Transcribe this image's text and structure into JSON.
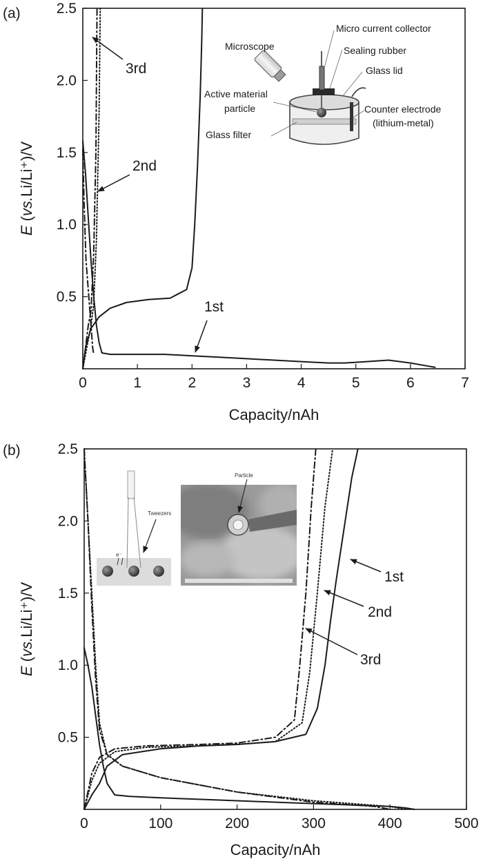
{
  "chart_data": [
    {
      "type": "line",
      "panel_label": "(a)",
      "xlabel": "Capacity/nAh",
      "ylabel": "E (vs.Li/Li⁺)/V",
      "xlim": [
        0,
        7
      ],
      "ylim": [
        0,
        2.5
      ],
      "x_ticks": [
        0,
        1,
        2,
        3,
        4,
        5,
        6,
        7
      ],
      "y_ticks": [
        0.5,
        1.0,
        1.5,
        2.0,
        2.5
      ],
      "grid": false,
      "series": [
        {
          "name": "1st",
          "style": "solid",
          "x": [
            0.0,
            0.05,
            0.1,
            0.15,
            0.2,
            0.25,
            0.3,
            0.35,
            0.5,
            1.0,
            1.5,
            2.0,
            2.5,
            3.0,
            3.5,
            4.0,
            4.5,
            4.8,
            5.2,
            5.6,
            6.0,
            6.3,
            6.45
          ],
          "y": [
            1.58,
            1.35,
            1.05,
            0.75,
            0.5,
            0.3,
            0.18,
            0.11,
            0.1,
            0.1,
            0.1,
            0.09,
            0.08,
            0.07,
            0.06,
            0.05,
            0.04,
            0.04,
            0.05,
            0.06,
            0.04,
            0.02,
            0.01
          ]
        },
        {
          "name": "1st",
          "style": "solid",
          "x": [
            0.0,
            0.05,
            0.15,
            0.3,
            0.5,
            0.8,
            1.2,
            1.6,
            1.9,
            2.0,
            2.05,
            2.1,
            2.15,
            2.18,
            2.19
          ],
          "y": [
            0.0,
            0.15,
            0.28,
            0.36,
            0.42,
            0.46,
            0.48,
            0.49,
            0.55,
            0.7,
            1.0,
            1.4,
            1.9,
            2.3,
            2.5
          ]
        },
        {
          "name": "2nd",
          "style": "dash-dot",
          "x": [
            0.0,
            0.02,
            0.04,
            0.06,
            0.08,
            0.1,
            0.12,
            0.14,
            0.16,
            0.18,
            0.2
          ],
          "y": [
            1.52,
            1.2,
            0.95,
            0.75,
            0.65,
            0.55,
            0.45,
            0.35,
            0.25,
            0.15,
            0.1
          ]
        },
        {
          "name": "2nd",
          "style": "dash-dot",
          "x": [
            0.0,
            0.05,
            0.1,
            0.15,
            0.2,
            0.24,
            0.26
          ],
          "y": [
            0.0,
            0.15,
            0.3,
            0.4,
            0.8,
            1.5,
            2.5
          ]
        },
        {
          "name": "3rd",
          "style": "dotted",
          "x": [
            0.0,
            0.05,
            0.1,
            0.15,
            0.2,
            0.25,
            0.3,
            0.32
          ],
          "y": [
            0.0,
            0.1,
            0.2,
            0.3,
            0.45,
            0.9,
            1.8,
            2.5
          ]
        }
      ],
      "annotations": [
        {
          "text": "3rd",
          "x": 0.75,
          "y": 2.05
        },
        {
          "text": "2nd",
          "x": 0.75,
          "y": 1.42
        },
        {
          "text": "1st",
          "x": 2.1,
          "y": 0.42
        }
      ],
      "inset": {
        "labels": {
          "microscope": "Microscope",
          "current_collector": "Micro current collector",
          "sealing": "Sealing rubber",
          "glass_lid": "Glass lid",
          "active1": "Active material",
          "active2": "particle",
          "counter1": "Counter electrode",
          "counter2": "(lithium-metal)",
          "glass_filter": "Glass filter"
        }
      }
    },
    {
      "type": "line",
      "panel_label": "(b)",
      "xlabel": "Capacity/nAh",
      "ylabel": "E (vs.Li/Li⁺)/V",
      "xlim": [
        0,
        500
      ],
      "ylim": [
        0,
        2.5
      ],
      "x_ticks": [
        0,
        100,
        200,
        300,
        400,
        500
      ],
      "y_ticks": [
        0.5,
        1.0,
        1.5,
        2.0,
        2.5
      ],
      "grid": false,
      "series": [
        {
          "name": "1st",
          "style": "solid",
          "x": [
            0,
            5,
            10,
            15,
            20,
            25,
            30,
            40,
            60,
            100,
            150,
            200,
            250,
            300,
            350,
            400,
            420,
            432
          ],
          "y": [
            1.12,
            1.0,
            0.85,
            0.65,
            0.45,
            0.3,
            0.18,
            0.1,
            0.09,
            0.08,
            0.07,
            0.06,
            0.05,
            0.04,
            0.03,
            0.02,
            0.01,
            0.0
          ]
        },
        {
          "name": "1st",
          "style": "solid",
          "x": [
            0,
            10,
            20,
            30,
            50,
            100,
            150,
            200,
            250,
            290,
            305,
            315,
            322,
            330,
            340,
            350,
            358
          ],
          "y": [
            0.0,
            0.1,
            0.18,
            0.3,
            0.38,
            0.42,
            0.44,
            0.45,
            0.47,
            0.52,
            0.7,
            1.0,
            1.3,
            1.6,
            1.95,
            2.3,
            2.5
          ]
        },
        {
          "name": "2nd",
          "style": "dotted",
          "x": [
            0,
            5,
            10,
            15,
            20,
            30,
            50,
            100,
            200,
            300,
            400,
            420
          ],
          "y": [
            2.5,
            2.0,
            1.5,
            1.0,
            0.6,
            0.38,
            0.3,
            0.22,
            0.12,
            0.06,
            0.02,
            0.0
          ]
        },
        {
          "name": "2nd",
          "style": "dotted",
          "x": [
            0,
            10,
            20,
            40,
            80,
            150,
            200,
            250,
            285,
            295,
            305,
            315,
            325
          ],
          "y": [
            0.0,
            0.2,
            0.32,
            0.4,
            0.43,
            0.44,
            0.45,
            0.47,
            0.6,
            0.95,
            1.5,
            2.1,
            2.5
          ]
        },
        {
          "name": "3rd",
          "style": "dash-dot",
          "x": [
            0,
            5,
            10,
            15,
            20,
            30,
            50,
            100,
            200,
            300,
            380,
            400
          ],
          "y": [
            2.5,
            2.0,
            1.4,
            0.9,
            0.55,
            0.38,
            0.3,
            0.22,
            0.12,
            0.05,
            0.02,
            0.0
          ]
        },
        {
          "name": "3rd",
          "style": "dash-dot",
          "x": [
            0,
            10,
            20,
            40,
            80,
            150,
            200,
            250,
            275,
            282,
            290,
            297,
            303
          ],
          "y": [
            0.0,
            0.25,
            0.36,
            0.42,
            0.44,
            0.45,
            0.46,
            0.5,
            0.62,
            1.0,
            1.5,
            2.1,
            2.5
          ]
        }
      ],
      "annotations": [
        {
          "text": "1st",
          "x": 395,
          "y": 1.55
        },
        {
          "text": "2nd",
          "x": 378,
          "y": 1.22
        },
        {
          "text": "3rd",
          "x": 358,
          "y": 0.9
        }
      ],
      "inset": {
        "labels": {
          "tweezers": "Tweezers",
          "particle": "Particle",
          "electron": "e⁻"
        }
      }
    }
  ]
}
